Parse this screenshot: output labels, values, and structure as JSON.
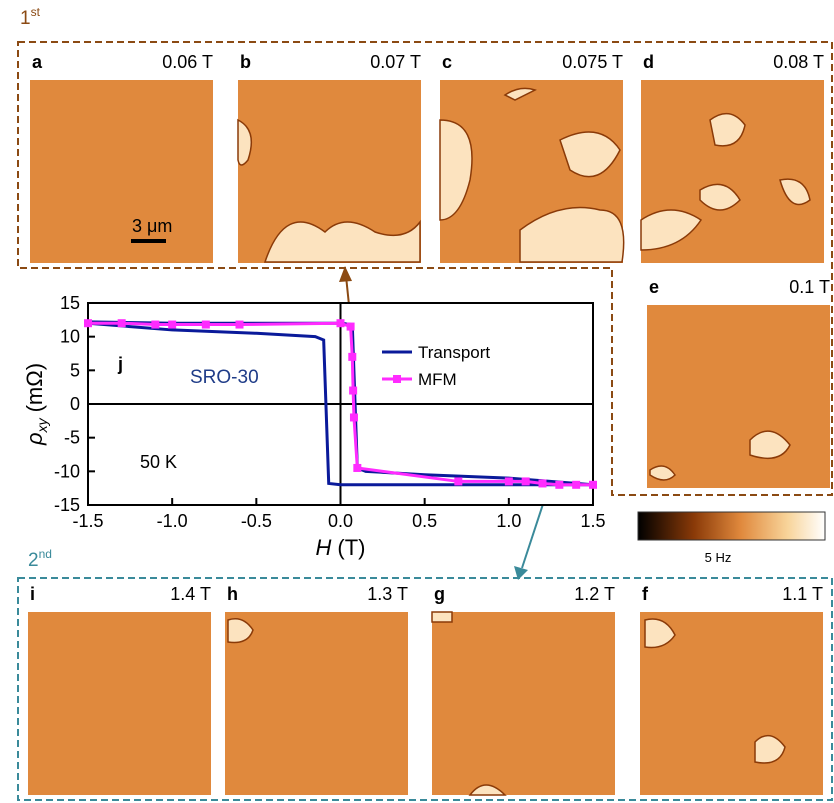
{
  "sweeps": [
    {
      "number": "1",
      "suffix": "st"
    },
    {
      "number": "2",
      "suffix": "nd"
    }
  ],
  "panels": [
    {
      "letter": "a",
      "field": "0.06 T"
    },
    {
      "letter": "b",
      "field": "0.07 T"
    },
    {
      "letter": "c",
      "field": "0.075 T"
    },
    {
      "letter": "d",
      "field": "0.08 T"
    },
    {
      "letter": "e",
      "field": "0.1 T"
    },
    {
      "letter": "i",
      "field": "1.4 T"
    },
    {
      "letter": "h",
      "field": "1.3 T"
    },
    {
      "letter": "g",
      "field": "1.2 T"
    },
    {
      "letter": "f",
      "field": "1.1 T"
    }
  ],
  "scale_bar": "3 μm",
  "colorbar_label": "5 Hz",
  "chart_data": {
    "type": "line",
    "ylabel": {
      "symbol": "ρ",
      "sub": "xy",
      "unit": "(mΩ)"
    },
    "xlabel": {
      "symbol": "H",
      "unit": "(T)"
    },
    "annotations": [
      "j",
      "SRO-30",
      "50 K"
    ],
    "xlim": [
      -1.5,
      1.5
    ],
    "xticks": [
      -1.5,
      {
        "value": -1,
        "label": "-1.0"
      },
      -0.5,
      {
        "value": 0,
        "label": "0.0"
      },
      0.5,
      {
        "value": 1,
        "label": "1.0"
      },
      1.5
    ],
    "ylim": [
      -15,
      15
    ],
    "yticks": [
      -15,
      -10,
      -5,
      0,
      5,
      10,
      15
    ],
    "series": [
      {
        "name": "Transport",
        "color": "#0a1a9a",
        "markers": false,
        "x": [
          -1.5,
          -1.0,
          -0.5,
          0.0,
          0.07,
          0.1,
          0.15,
          0.5,
          1.0,
          1.5,
          1.0,
          0.5,
          0.0,
          -0.07,
          -0.1,
          -0.15,
          -0.5,
          -1.0,
          -1.5
        ],
        "values": [
          12.2,
          12,
          12,
          12,
          11.8,
          -9.5,
          -10,
          -10.5,
          -11,
          -12,
          -12,
          -12,
          -12,
          -11.8,
          9.5,
          10,
          10.5,
          11,
          12
        ]
      },
      {
        "name": "MFM",
        "color": "#ff2bff",
        "markers": true,
        "x": [
          -1.5,
          -1.3,
          -1.1,
          -1.0,
          -0.8,
          -0.6,
          0.0,
          0.06,
          0.07,
          0.075,
          0.08,
          0.1,
          0.7,
          1.0,
          1.1,
          1.2,
          1.3,
          1.4,
          1.5
        ],
        "values": [
          12,
          12,
          11.8,
          11.8,
          11.8,
          11.8,
          12,
          11.5,
          7,
          2,
          -2,
          -9.5,
          -11.5,
          -11.5,
          -11.5,
          -11.8,
          -12,
          -12,
          -12
        ]
      }
    ]
  }
}
